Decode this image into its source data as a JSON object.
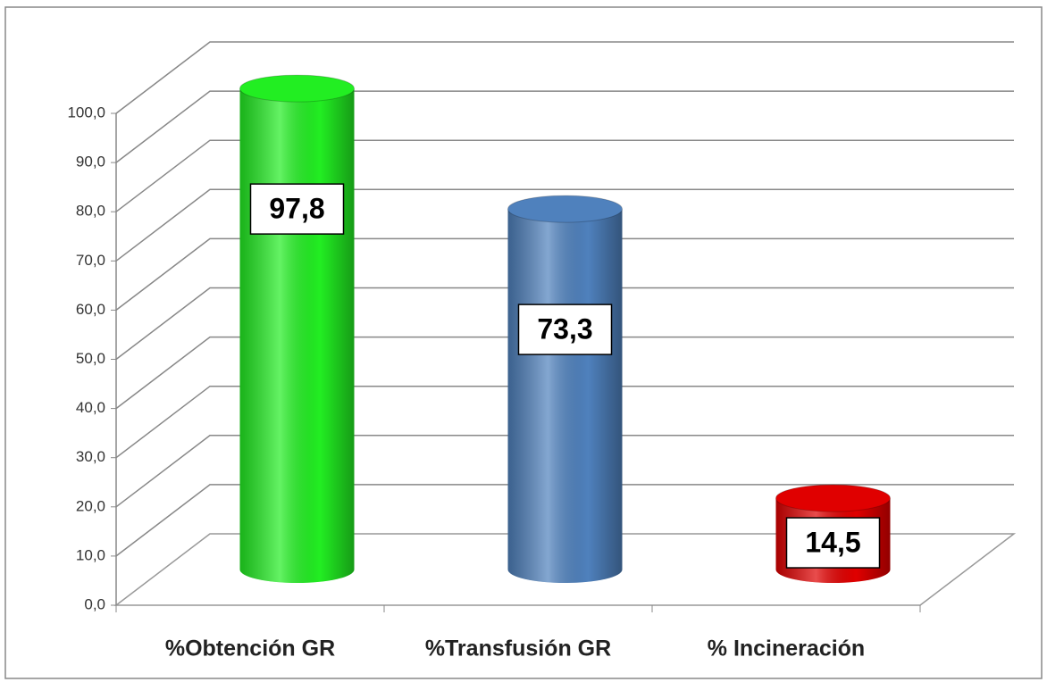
{
  "chart_data": {
    "type": "bar3d",
    "categories": [
      "%Obtención GR",
      "%Transfusión GR",
      "% Incineración"
    ],
    "values": [
      97.8,
      73.3,
      14.5
    ],
    "value_labels": [
      "97,8",
      "73,3",
      "14,5"
    ],
    "colors": [
      "#22ee22",
      "#4f81bd",
      "#e00000"
    ],
    "ylim": [
      0,
      100
    ],
    "yticks": [
      {
        "value": 0,
        "label": "0,0"
      },
      {
        "value": 10,
        "label": "10,0"
      },
      {
        "value": 20,
        "label": "20,0"
      },
      {
        "value": 30,
        "label": "30,0"
      },
      {
        "value": 40,
        "label": "40,0"
      },
      {
        "value": 50,
        "label": "50,0"
      },
      {
        "value": 60,
        "label": "60,0"
      },
      {
        "value": 70,
        "label": "70,0"
      },
      {
        "value": 80,
        "label": "80,0"
      },
      {
        "value": 90,
        "label": "90,0"
      },
      {
        "value": 100,
        "label": "100,0"
      }
    ],
    "grid": true
  }
}
